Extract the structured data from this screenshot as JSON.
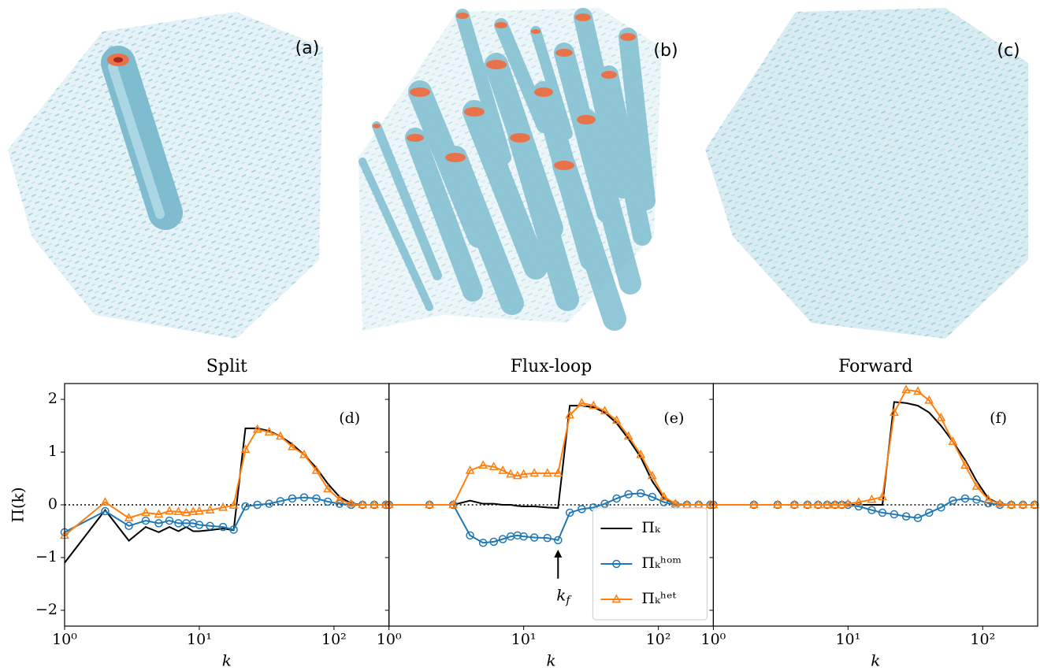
{
  "renders": [
    {
      "label": "(a)"
    },
    {
      "label": "(b)"
    },
    {
      "label": "(c)"
    }
  ],
  "chart_data": [
    {
      "type": "line",
      "title": "Split",
      "panel_label": "(d)",
      "xlabel": "k",
      "ylabel": "Π(k)",
      "xscale": "log",
      "xlim": [
        1,
        256
      ],
      "ylim": [
        -2.3,
        2.3
      ],
      "zero_line": true,
      "xticks": [
        {
          "value": 1,
          "label": "10⁰"
        },
        {
          "value": 10,
          "label": "10¹"
        },
        {
          "value": 100,
          "label": "10²"
        }
      ],
      "yticks": [
        {
          "value": -2,
          "label": "−2"
        },
        {
          "value": -1,
          "label": "−1"
        },
        0,
        1,
        2
      ],
      "x": [
        1,
        2,
        3,
        4,
        5,
        6,
        7,
        8,
        9,
        10,
        12,
        15,
        18,
        22,
        27,
        33,
        40,
        49,
        60,
        74,
        90,
        110,
        134,
        163,
        199,
        243
      ],
      "series": [
        {
          "color": "#000000",
          "marker": "none",
          "values": [
            -1.1,
            -0.1,
            -0.68,
            -0.42,
            -0.52,
            -0.42,
            -0.5,
            -0.42,
            -0.5,
            -0.5,
            -0.48,
            -0.45,
            -0.48,
            1.45,
            1.45,
            1.4,
            1.3,
            1.15,
            0.95,
            0.7,
            0.4,
            0.15,
            0.03,
            0,
            0,
            0
          ]
        },
        {
          "color": "#1f77b4",
          "marker": "circle",
          "values": [
            -0.52,
            -0.12,
            -0.4,
            -0.3,
            -0.35,
            -0.3,
            -0.35,
            -0.35,
            -0.35,
            -0.38,
            -0.4,
            -0.42,
            -0.47,
            -0.03,
            0,
            0.02,
            0.07,
            0.12,
            0.14,
            0.12,
            0.06,
            0.02,
            0,
            0,
            0,
            0
          ]
        },
        {
          "color": "#ff7f0e",
          "marker": "triangle",
          "values": [
            -0.58,
            0.05,
            -0.25,
            -0.15,
            -0.18,
            -0.12,
            -0.13,
            -0.15,
            -0.13,
            -0.12,
            -0.1,
            -0.05,
            -0.01,
            1.05,
            1.43,
            1.38,
            1.3,
            1.1,
            0.95,
            0.65,
            0.3,
            0.1,
            0.02,
            0,
            0,
            0
          ]
        }
      ]
    },
    {
      "type": "line",
      "title": "Flux-loop",
      "panel_label": "(e)",
      "xlabel": "k",
      "xscale": "log",
      "xlim": [
        1,
        256
      ],
      "ylim": [
        -2.3,
        2.3
      ],
      "zero_line": true,
      "legend": "lower right",
      "arrow": {
        "x": 18,
        "from": -1.4,
        "to": -0.85,
        "text": "k",
        "sub": "f"
      },
      "xticks": [
        {
          "value": 1,
          "label": "10⁰"
        },
        {
          "value": 10,
          "label": "10¹"
        },
        {
          "value": 100,
          "label": "10²"
        }
      ],
      "x": [
        1,
        2,
        3,
        4,
        5,
        6,
        7,
        8,
        9,
        10,
        12,
        15,
        18,
        22,
        27,
        33,
        40,
        49,
        60,
        74,
        90,
        110,
        134,
        163,
        199,
        243
      ],
      "series": [
        {
          "name": "Πₖ",
          "color": "#000000",
          "marker": "none",
          "values": [
            0,
            0,
            0,
            0.08,
            0.02,
            0.02,
            0,
            0,
            -0.02,
            -0.03,
            -0.03,
            -0.05,
            -0.06,
            1.88,
            1.88,
            1.85,
            1.75,
            1.55,
            1.25,
            0.9,
            0.45,
            0.12,
            0.02,
            0,
            0,
            0
          ]
        },
        {
          "name": "Πₖʰᵒᵐ",
          "color": "#1f77b4",
          "marker": "circle",
          "values": [
            0,
            0,
            0,
            -0.58,
            -0.72,
            -0.7,
            -0.65,
            -0.6,
            -0.58,
            -0.6,
            -0.62,
            -0.63,
            -0.67,
            -0.15,
            -0.08,
            -0.05,
            0.02,
            0.12,
            0.2,
            0.22,
            0.15,
            0.05,
            0,
            0,
            0,
            0
          ]
        },
        {
          "name": "Πₖʰᵉᵗ",
          "color": "#ff7f0e",
          "marker": "triangle",
          "values": [
            0,
            0,
            0,
            0.65,
            0.75,
            0.72,
            0.65,
            0.58,
            0.55,
            0.58,
            0.6,
            0.6,
            0.6,
            1.7,
            1.93,
            1.88,
            1.78,
            1.6,
            1.3,
            0.95,
            0.55,
            0.15,
            0.02,
            0,
            0,
            0
          ]
        }
      ]
    },
    {
      "type": "line",
      "title": "Forward",
      "panel_label": "(f)",
      "xlabel": "k",
      "xscale": "log",
      "xlim": [
        1,
        256
      ],
      "ylim": [
        -2.3,
        2.3
      ],
      "zero_line": true,
      "xticks": [
        {
          "value": 1,
          "label": "10⁰"
        },
        {
          "value": 10,
          "label": "10¹"
        },
        {
          "value": 100,
          "label": "10²"
        }
      ],
      "x": [
        1,
        2,
        3,
        4,
        5,
        6,
        7,
        8,
        9,
        10,
        12,
        15,
        18,
        22,
        27,
        33,
        40,
        49,
        60,
        74,
        90,
        110,
        134,
        163,
        199,
        243
      ],
      "series": [
        {
          "color": "#000000",
          "marker": "none",
          "values": [
            0,
            0,
            0,
            0,
            0,
            0,
            0,
            0,
            0,
            0,
            0,
            0,
            0,
            1.95,
            1.93,
            1.88,
            1.75,
            1.5,
            1.2,
            0.85,
            0.45,
            0.12,
            0.02,
            0,
            0,
            0
          ]
        },
        {
          "color": "#1f77b4",
          "marker": "circle",
          "values": [
            0,
            0,
            0,
            0,
            0,
            0,
            0,
            0,
            0,
            0,
            -0.03,
            -0.1,
            -0.15,
            -0.18,
            -0.22,
            -0.25,
            -0.15,
            -0.05,
            0.08,
            0.12,
            0.1,
            0.03,
            0,
            0,
            0,
            0
          ]
        },
        {
          "color": "#ff7f0e",
          "marker": "triangle",
          "values": [
            0,
            0,
            0,
            0,
            0,
            0,
            0,
            0,
            0,
            0.02,
            0.05,
            0.1,
            0.15,
            1.75,
            2.18,
            2.15,
            1.98,
            1.65,
            1.2,
            0.75,
            0.35,
            0.1,
            0.02,
            0,
            0,
            0
          ]
        }
      ]
    }
  ]
}
